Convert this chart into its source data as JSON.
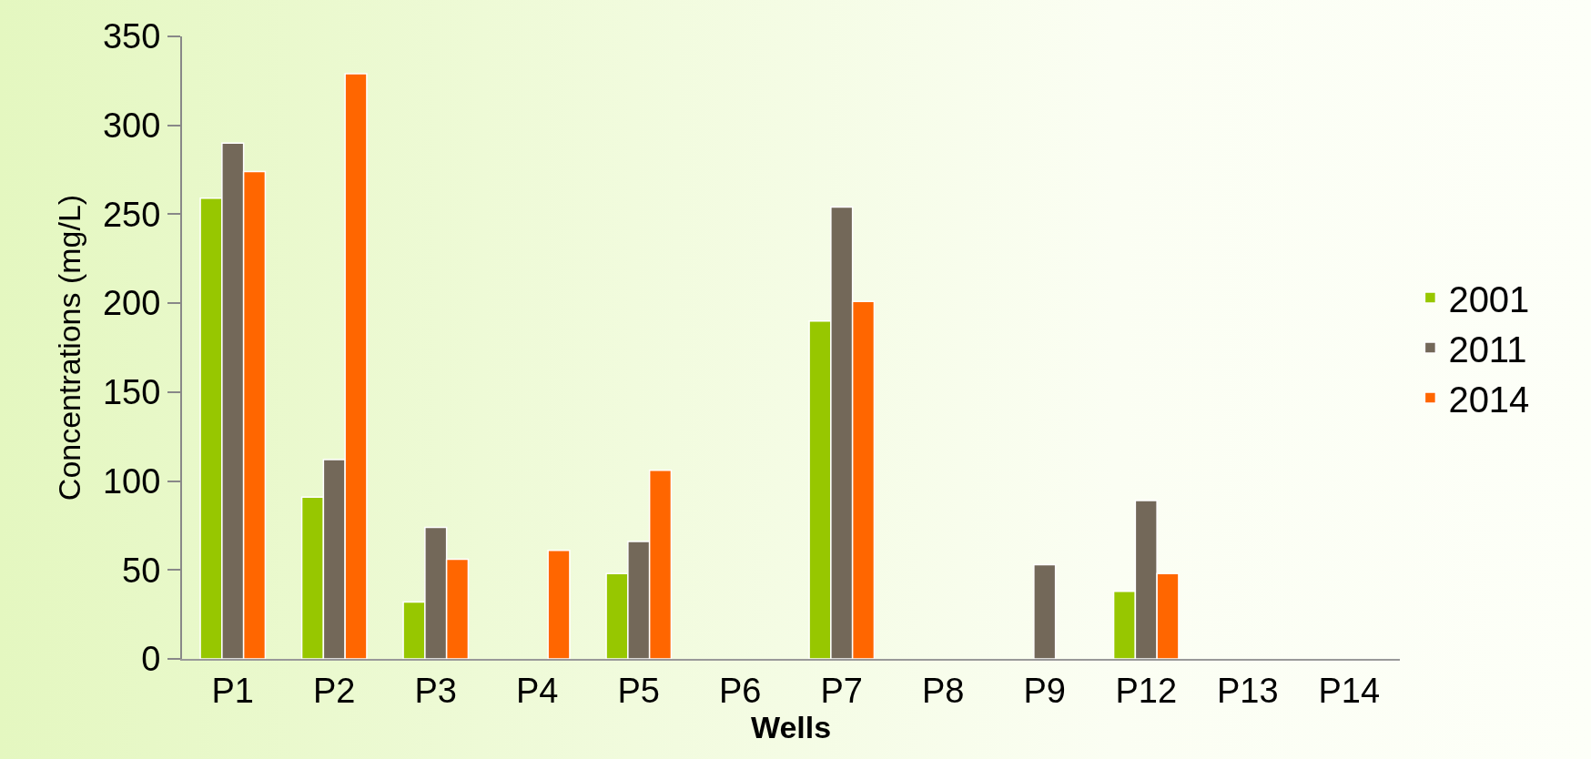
{
  "chart_data": {
    "type": "bar",
    "xlabel": "Wells",
    "ylabel": "Concentrations (mg/L)",
    "categories": [
      "P1",
      "P2",
      "P3",
      "P4",
      "P5",
      "P6",
      "P7",
      "P8",
      "P9",
      "P12",
      "P13",
      "P14"
    ],
    "series": [
      {
        "name": "2001",
        "color": "#97c700",
        "values": [
          259,
          91,
          32,
          null,
          48,
          null,
          190,
          null,
          null,
          38,
          null,
          null
        ]
      },
      {
        "name": "2011",
        "color": "#736859",
        "values": [
          290,
          112,
          74,
          null,
          66,
          null,
          254,
          null,
          53,
          89,
          null,
          null
        ]
      },
      {
        "name": "2014",
        "color": "#ff6600",
        "values": [
          274,
          329,
          56,
          61,
          106,
          null,
          201,
          null,
          null,
          48,
          null,
          null
        ]
      }
    ],
    "ylim": [
      0,
      350
    ],
    "yticks": [
      0,
      50,
      100,
      150,
      200,
      250,
      300,
      350
    ],
    "grid": false,
    "legend": "right"
  }
}
